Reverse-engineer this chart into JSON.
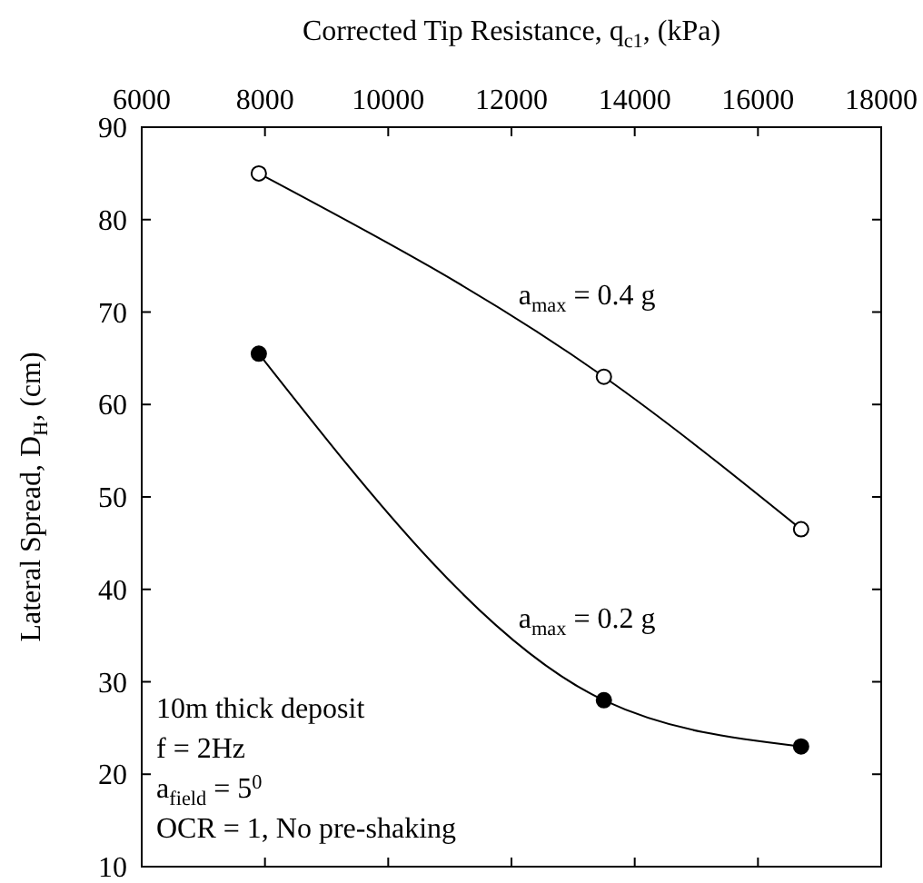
{
  "chart_data": {
    "type": "line",
    "xlabel": "Corrected Tip Resistance, q$_{c1}$, (kPa)",
    "ylabel": "Lateral Spread, D$_{H}$, (cm)",
    "x": [
      7900,
      13500,
      16700
    ],
    "series": [
      {
        "name": "a$_{max}$ = 0.4 g",
        "color": "#000000",
        "colors": [
          "#ffffff",
          "#ffffff",
          "#ffffff"
        ],
        "values": [
          85,
          63,
          46.5
        ]
      },
      {
        "name": "a$_{max}$ = 0.2 g",
        "color": "#000000",
        "colors": [
          "#000000",
          "#000000",
          "#000000"
        ],
        "values": [
          65.5,
          28,
          23
        ]
      }
    ],
    "xlim": [
      6000,
      18000
    ],
    "xticks": [
      6000,
      8000,
      10000,
      12000,
      14000,
      16000,
      18000
    ],
    "ylim": [
      10,
      90
    ],
    "yticks": [
      10,
      20,
      30,
      40,
      50,
      60,
      70,
      80,
      90
    ],
    "marker": "circle",
    "line_style": "solid",
    "grid": false,
    "annotations": [
      "10m thick deposit",
      "f = 2Hz",
      "a$_{field}$ = 5$^{0}$",
      "OCR = 1, No pre-shaking"
    ]
  }
}
